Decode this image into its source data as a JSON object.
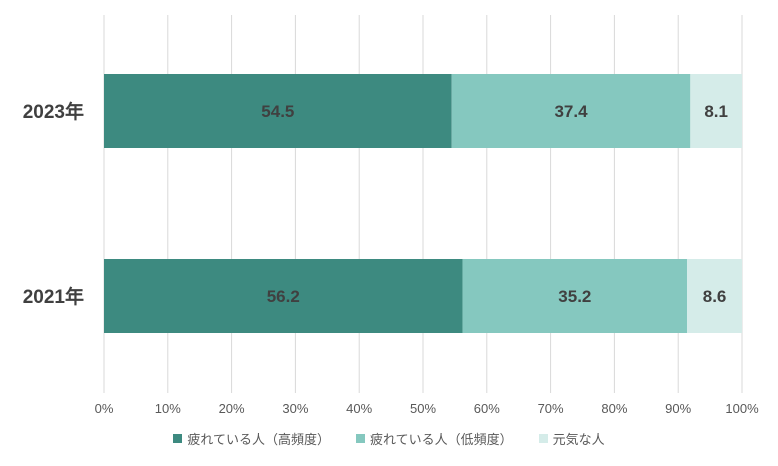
{
  "chart_data": {
    "type": "bar",
    "orientation": "horizontal",
    "stacked": true,
    "categories": [
      "2023年",
      "2021年"
    ],
    "series": [
      {
        "name": "疲れている人（高頻度）",
        "values": [
          54.5,
          56.2
        ],
        "color": "#3d8a80"
      },
      {
        "name": "疲れている人（低頻度）",
        "values": [
          37.4,
          35.2
        ],
        "color": "#85c8bf"
      },
      {
        "name": "元気な人",
        "values": [
          8.1,
          8.6
        ],
        "color": "#d5ece9"
      }
    ],
    "xlim": [
      0,
      100
    ],
    "x_ticks": [
      "0%",
      "10%",
      "20%",
      "30%",
      "40%",
      "50%",
      "60%",
      "70%",
      "80%",
      "90%",
      "100%"
    ],
    "grid": "vertical",
    "legend_position": "bottom",
    "title": ""
  }
}
